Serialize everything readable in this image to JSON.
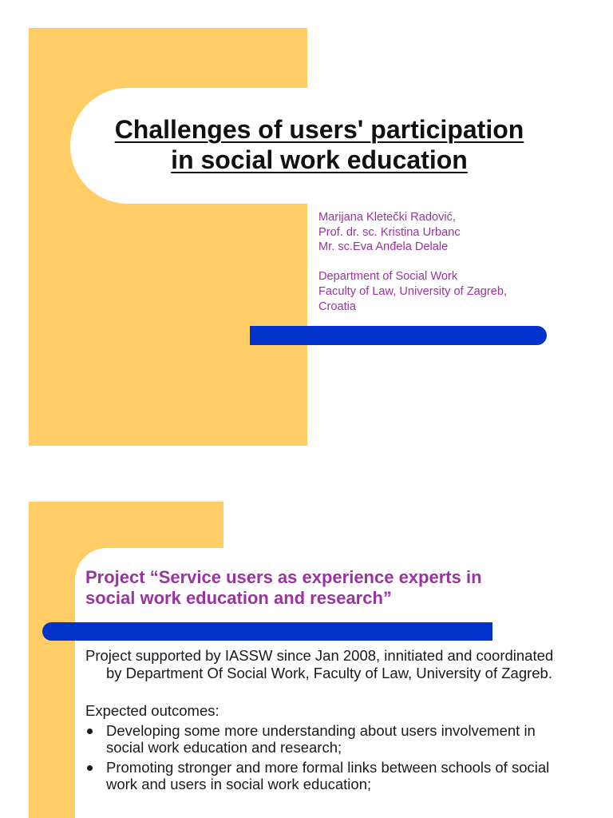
{
  "slide1": {
    "title_line1": "Challenges of users' participation",
    "title_line2": "in social work education",
    "authors": [
      "Marijana Kletečki Radović,",
      "Prof. dr. sc. Kristina Urbanc",
      "Mr. sc.Eva Anđela  Delale"
    ],
    "affiliation": [
      "Department of Social Work",
      "Faculty of Law, University of Zagreb,",
      "Croatia"
    ]
  },
  "slide2": {
    "heading": "Project “Service users as experience experts in social work education and research”",
    "paragraph": "Project supported by IASSW since Jan 2008, innitiated and coordinated by Department Of Social Work, Faculty of Law, University of Zagreb.",
    "expected_label": "Expected outcomes:",
    "bullets": [
      "Developing some more understanding  about users involvement in social work education and research;",
      "Promoting stronger and more formal links between schools of social work and users in social work education;"
    ]
  },
  "colors": {
    "orange_block": "#FFCC66",
    "blue_bar": "#0033CC",
    "purple_text": "#9933A0"
  }
}
